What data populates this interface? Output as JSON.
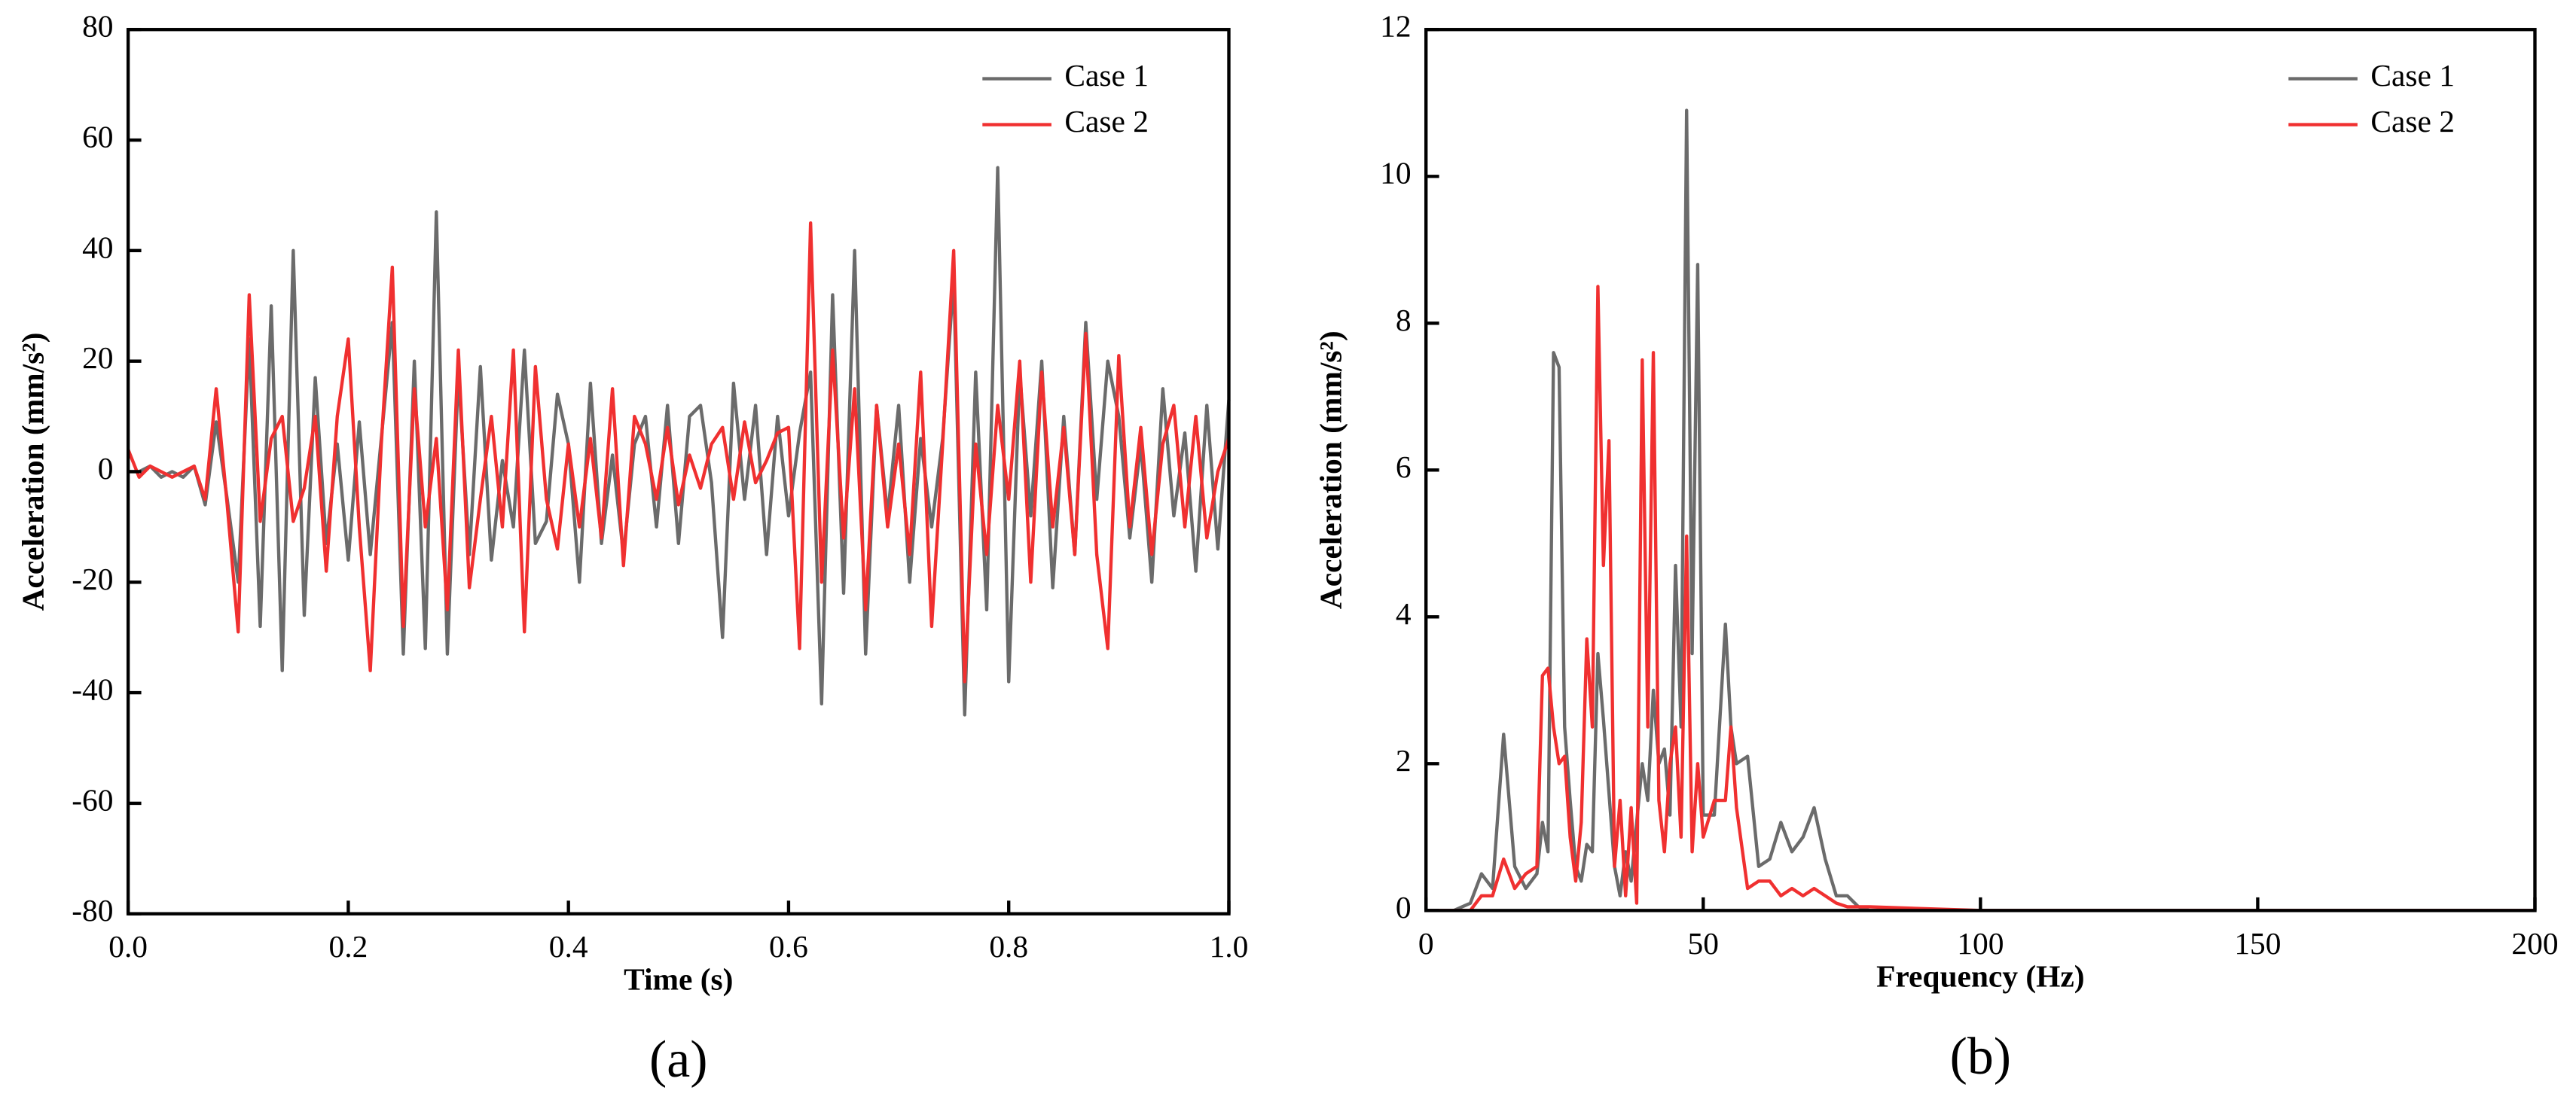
{
  "chart_data": [
    {
      "type": "line",
      "caption": "(a)",
      "xlabel": "Time (s)",
      "ylabel": "Acceleration (mm/s²)",
      "xlim": [
        0,
        1
      ],
      "ylim": [
        -80,
        80
      ],
      "xticks": [
        {
          "value": 0,
          "label": "0.0"
        },
        0.2,
        0.4,
        0.6,
        0.8,
        {
          "value": 1,
          "label": "1.0"
        }
      ],
      "yticks": [
        -80,
        -60,
        -40,
        -20,
        0,
        20,
        40,
        60,
        80
      ],
      "legend": "upper right",
      "x": [
        0,
        0.01,
        0.02,
        0.03,
        0.04,
        0.05,
        0.06,
        0.07,
        0.08,
        0.09,
        0.1,
        0.11,
        0.12,
        0.13,
        0.14,
        0.15,
        0.16,
        0.17,
        0.18,
        0.19,
        0.2,
        0.21,
        0.22,
        0.23,
        0.24,
        0.25,
        0.26,
        0.27,
        0.28,
        0.29,
        0.3,
        0.31,
        0.32,
        0.33,
        0.34,
        0.35,
        0.36,
        0.37,
        0.38,
        0.39,
        0.4,
        0.41,
        0.42,
        0.43,
        0.44,
        0.45,
        0.46,
        0.47,
        0.48,
        0.49,
        0.5,
        0.51,
        0.52,
        0.53,
        0.54,
        0.55,
        0.56,
        0.57,
        0.58,
        0.59,
        0.6,
        0.61,
        0.62,
        0.63,
        0.64,
        0.65,
        0.66,
        0.67,
        0.68,
        0.69,
        0.7,
        0.71,
        0.72,
        0.73,
        0.74,
        0.75,
        0.76,
        0.77,
        0.78,
        0.79,
        0.8,
        0.81,
        0.82,
        0.83,
        0.84,
        0.85,
        0.86,
        0.87,
        0.88,
        0.89,
        0.9,
        0.91,
        0.92,
        0.93,
        0.94,
        0.95,
        0.96,
        0.97,
        0.98,
        0.99,
        1
      ],
      "series": [
        {
          "name": "Case 1",
          "color": "#6b6b6b",
          "values": [
            0,
            0,
            1,
            -1,
            0,
            -1,
            1,
            -6,
            9,
            -5,
            -20,
            24,
            -28,
            30,
            -36,
            40,
            -26,
            17,
            -13,
            5,
            -16,
            9,
            -15,
            6,
            27,
            -33,
            20,
            -32,
            47,
            -33,
            18,
            -15,
            19,
            -16,
            2,
            -10,
            22,
            -13,
            -9,
            14,
            5,
            -20,
            16,
            -13,
            3,
            -15,
            5,
            10,
            -10,
            12,
            -13,
            10,
            12,
            -2,
            -30,
            16,
            -5,
            12,
            -15,
            10,
            -8,
            7,
            18,
            -42,
            32,
            -22,
            40,
            -33,
            12,
            -8,
            12,
            -20,
            6,
            -10,
            6,
            35,
            -44,
            18,
            -25,
            55,
            -38,
            18,
            -8,
            20,
            -21,
            10,
            -15,
            27,
            -5,
            20,
            10,
            -12,
            5,
            -20,
            15,
            -8,
            7,
            -18,
            12,
            -14,
            13
          ]
        },
        {
          "name": "Case 2",
          "color": "#f03030",
          "values": [
            4,
            -1,
            1,
            0,
            -1,
            0,
            1,
            -5,
            15,
            -6,
            -29,
            32,
            -9,
            6,
            10,
            -9,
            -3,
            10,
            -18,
            10,
            24,
            -10,
            -36,
            5,
            37,
            -28,
            15,
            -10,
            6,
            -25,
            22,
            -21,
            -5,
            10,
            -10,
            22,
            -29,
            19,
            -5,
            -14,
            5,
            -10,
            6,
            -12,
            15,
            -17,
            10,
            5,
            -5,
            8,
            -6,
            3,
            -3,
            5,
            8,
            -5,
            9,
            -2,
            2,
            7,
            8,
            -32,
            45,
            -20,
            22,
            -12,
            15,
            -25,
            12,
            -10,
            5,
            -15,
            18,
            -28,
            5,
            40,
            -38,
            5,
            -15,
            12,
            -5,
            20,
            -20,
            18,
            -10,
            8,
            -15,
            25,
            -15,
            -32,
            21,
            -10,
            8,
            -15,
            5,
            12,
            -10,
            10,
            -12,
            0,
            6
          ]
        }
      ]
    },
    {
      "type": "line",
      "caption": "(b)",
      "xlabel": "Frequency (Hz)",
      "ylabel": "Acceleration (mm/s²)",
      "xlim": [
        0,
        200
      ],
      "ylim": [
        0,
        12
      ],
      "xticks": [
        0,
        50,
        100,
        150,
        200
      ],
      "yticks": [
        0,
        2,
        4,
        6,
        8,
        10,
        12
      ],
      "legend": "upper right",
      "x": [
        0,
        5,
        8,
        10,
        12,
        14,
        16,
        18,
        20,
        21,
        22,
        23,
        24,
        25,
        26,
        27,
        28,
        29,
        30,
        31,
        32,
        33,
        34,
        35,
        36,
        37,
        38,
        39,
        40,
        41,
        42,
        43,
        44,
        45,
        46,
        47,
        48,
        49,
        50,
        52,
        54,
        55,
        56,
        58,
        60,
        62,
        64,
        66,
        68,
        70,
        72,
        74,
        76,
        78,
        80,
        100,
        150,
        200
      ],
      "series": [
        {
          "name": "Case 1",
          "color": "#6b6b6b",
          "values": [
            0,
            0,
            0.1,
            0.5,
            0.3,
            2.4,
            0.6,
            0.3,
            0.5,
            1.2,
            0.8,
            7.6,
            7.4,
            2.5,
            1.5,
            0.6,
            0.4,
            0.9,
            0.8,
            3.5,
            2.6,
            1.6,
            0.6,
            0.2,
            0.8,
            0.4,
            1.2,
            2.0,
            1.5,
            3.0,
            2.0,
            2.2,
            1.3,
            4.7,
            2.5,
            10.9,
            3.5,
            8.8,
            1.3,
            1.3,
            3.9,
            2.5,
            2.0,
            2.1,
            0.6,
            0.7,
            1.2,
            0.8,
            1.0,
            1.4,
            0.7,
            0.2,
            0.2,
            0.05,
            0,
            0,
            0,
            0
          ]
        },
        {
          "name": "Case 2",
          "color": "#f03030",
          "values": [
            0,
            0,
            0,
            0.2,
            0.2,
            0.7,
            0.3,
            0.5,
            0.6,
            3.2,
            3.3,
            2.5,
            2.0,
            2.1,
            1.0,
            0.4,
            1.2,
            3.7,
            2.5,
            8.5,
            4.7,
            6.4,
            0.6,
            1.5,
            0.2,
            1.4,
            0.1,
            7.5,
            2.5,
            7.6,
            1.5,
            0.8,
            2.0,
            2.5,
            1.0,
            5.1,
            0.8,
            2.0,
            1.0,
            1.5,
            1.5,
            2.5,
            1.4,
            0.3,
            0.4,
            0.4,
            0.2,
            0.3,
            0.2,
            0.3,
            0.2,
            0.1,
            0.05,
            0.05,
            0.05,
            0,
            0,
            0
          ]
        }
      ]
    }
  ]
}
